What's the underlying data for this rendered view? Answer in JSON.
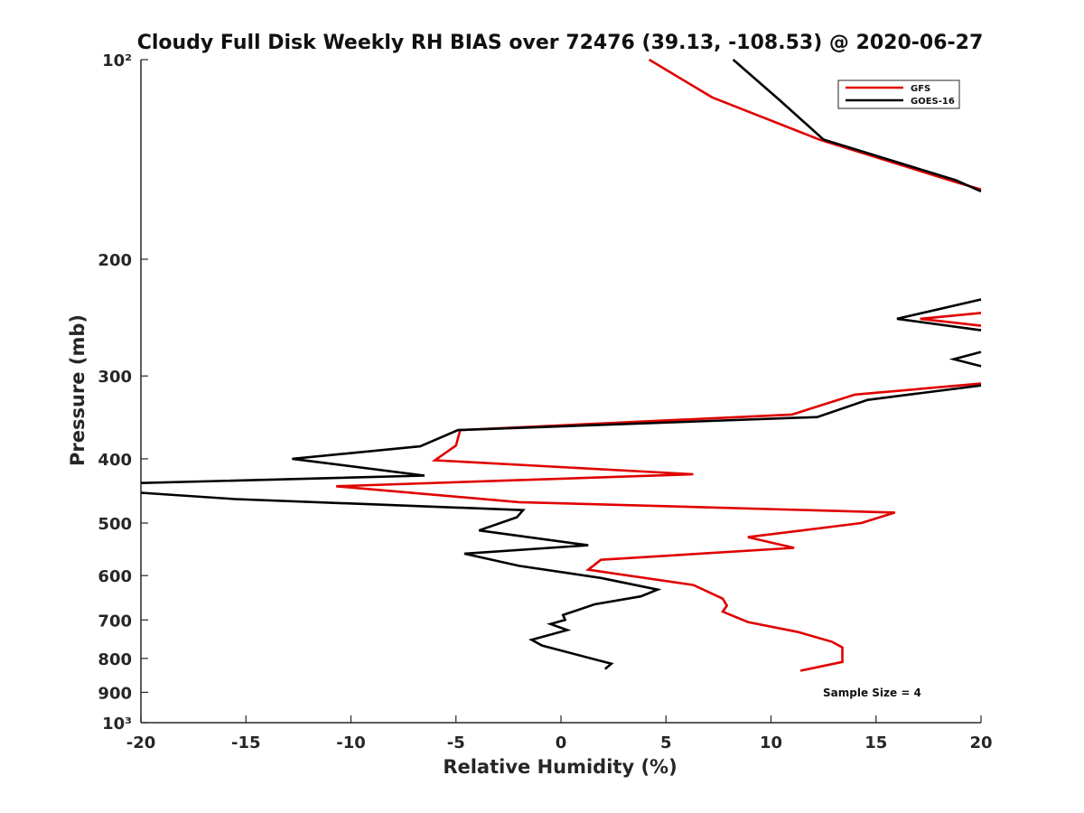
{
  "chart_data": {
    "type": "line",
    "title": "Cloudy Full Disk Weekly RH BIAS over 72476 (39.13, -108.53) @ 2020-06-27",
    "xlabel": "Relative Humidity (%)",
    "ylabel": "Pressure (mb)",
    "xlim": [
      -20,
      20
    ],
    "ylim": [
      100,
      1000
    ],
    "y_scale": "log",
    "y_reversed": true,
    "grid": false,
    "x_ticks": [
      -20,
      -15,
      -10,
      -5,
      0,
      5,
      10,
      15,
      20
    ],
    "x_tick_labels": [
      "-20",
      "-15",
      "-10",
      "-5",
      "0",
      "5",
      "10",
      "15",
      "20"
    ],
    "y_ticks": [
      100,
      200,
      300,
      400,
      500,
      600,
      700,
      800,
      900,
      1000
    ],
    "y_tick_labels": [
      "10²",
      "200",
      "300",
      "400",
      "500",
      "600",
      "700",
      "800",
      "900",
      "10³"
    ],
    "legend_position": "top-right",
    "annotation": "Sample Size = 4",
    "series": [
      {
        "name": "GFS",
        "color": "#e00000",
        "points": [
          [
            4.2,
            100
          ],
          [
            7.2,
            114
          ],
          [
            12.3,
            132
          ],
          [
            18.8,
            153
          ],
          [
            20.0,
            157
          ],
          [
            null,
            null
          ],
          [
            20.0,
            241
          ],
          [
            17.1,
            246
          ],
          [
            20.0,
            252
          ],
          [
            null,
            null
          ],
          [
            20.0,
            308
          ],
          [
            14.0,
            320
          ],
          [
            11.0,
            343
          ],
          [
            -4.8,
            362
          ],
          [
            -5.0,
            382
          ],
          [
            -6.0,
            402
          ],
          [
            6.3,
            422
          ],
          [
            -10.7,
            440
          ],
          [
            -2.0,
            465
          ],
          [
            15.9,
            482
          ],
          [
            14.3,
            500
          ],
          [
            8.9,
            525
          ],
          [
            11.1,
            545
          ],
          [
            1.9,
            568
          ],
          [
            1.3,
            588
          ],
          [
            6.3,
            620
          ],
          [
            7.7,
            650
          ],
          [
            7.9,
            666
          ],
          [
            7.7,
            680
          ],
          [
            8.9,
            705
          ],
          [
            11.3,
            730
          ],
          [
            12.9,
            755
          ],
          [
            13.4,
            770
          ],
          [
            13.4,
            810
          ],
          [
            11.4,
            835
          ]
        ]
      },
      {
        "name": "GOES-16",
        "color": "#000000",
        "points": [
          [
            8.2,
            100
          ],
          [
            10.4,
            115
          ],
          [
            12.5,
            132
          ],
          [
            18.8,
            152
          ],
          [
            20.0,
            158
          ],
          [
            null,
            null
          ],
          [
            20.0,
            230
          ],
          [
            16.0,
            246
          ],
          [
            20.0,
            256
          ],
          [
            null,
            null
          ],
          [
            20.0,
            276
          ],
          [
            18.7,
            283
          ],
          [
            20.0,
            290
          ],
          [
            null,
            null
          ],
          [
            20.0,
            310
          ],
          [
            14.6,
            326
          ],
          [
            12.2,
            346
          ],
          [
            -4.9,
            362
          ],
          [
            -6.7,
            383
          ],
          [
            -12.8,
            400
          ],
          [
            -6.5,
            424
          ],
          [
            -20.0,
            435
          ],
          [
            null,
            null
          ],
          [
            -20.0,
            450
          ],
          [
            -15.5,
            460
          ],
          [
            -1.8,
            478
          ],
          [
            -2.1,
            490
          ],
          [
            -3.9,
            513
          ],
          [
            1.3,
            540
          ],
          [
            -4.6,
            556
          ],
          [
            -2.0,
            580
          ],
          [
            1.9,
            605
          ],
          [
            4.6,
            630
          ],
          [
            3.8,
            645
          ],
          [
            1.6,
            663
          ],
          [
            0.1,
            688
          ],
          [
            0.2,
            700
          ],
          [
            -0.5,
            710
          ],
          [
            0.3,
            725
          ],
          [
            -1.4,
            750
          ],
          [
            -0.9,
            765
          ],
          [
            2.4,
            815
          ],
          [
            2.1,
            830
          ]
        ]
      }
    ]
  }
}
